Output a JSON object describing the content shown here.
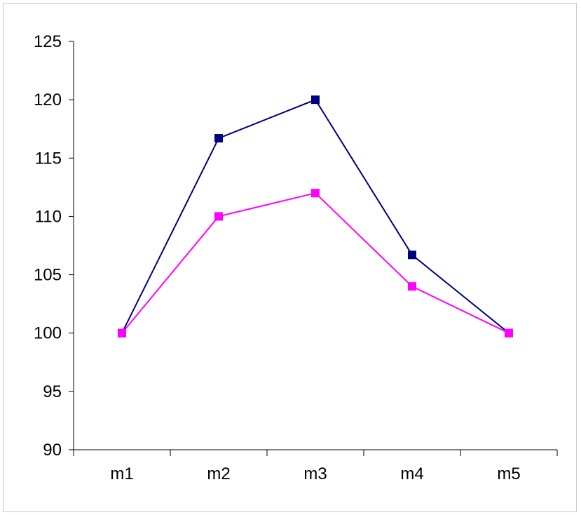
{
  "chart_data": {
    "type": "line",
    "title": "",
    "xlabel": "",
    "ylabel": "",
    "categories": [
      "m1",
      "m2",
      "m3",
      "m4",
      "m5"
    ],
    "ylim": [
      90,
      125
    ],
    "yticks": [
      90,
      95,
      100,
      105,
      110,
      115,
      120,
      125
    ],
    "ytick_labels": [
      "90",
      "95",
      "100",
      "105",
      "110",
      "115",
      "120",
      "125"
    ],
    "grid": false,
    "legend": "none",
    "marker": "square",
    "series": [
      {
        "values": [
          100,
          116.7,
          120,
          106.7,
          100
        ],
        "color": "#000080"
      },
      {
        "values": [
          100,
          110,
          112,
          104,
          100
        ],
        "color": "#ff00ff"
      }
    ]
  }
}
